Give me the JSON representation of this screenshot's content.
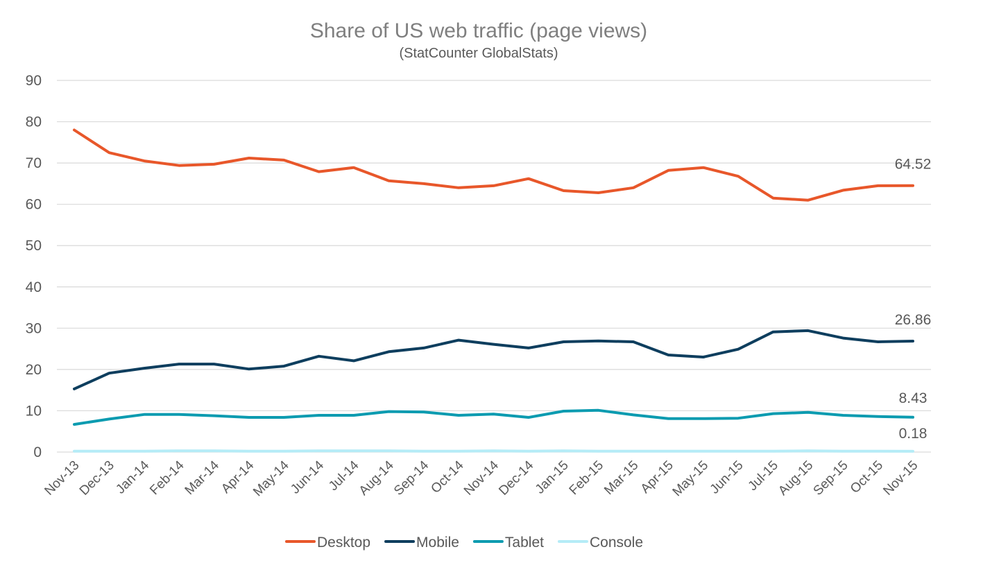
{
  "chart_data": {
    "type": "line",
    "title": "Share of US web traffic (page views)",
    "subtitle": "(StatCounter GlobalStats)",
    "xlabel": "",
    "ylabel": "",
    "ylim": [
      0,
      90
    ],
    "yticks": [
      "0",
      "10",
      "20",
      "30",
      "40",
      "50",
      "60",
      "70",
      "80",
      "90"
    ],
    "grid": true,
    "legend_position": "bottom",
    "categories": [
      "Nov-13",
      "Dec-13",
      "Jan-14",
      "Feb-14",
      "Mar-14",
      "Apr-14",
      "May-14",
      "Jun-14",
      "Jul-14",
      "Aug-14",
      "Sep-14",
      "Oct-14",
      "Nov-14",
      "Dec-14",
      "Jan-15",
      "Feb-15",
      "Mar-15",
      "Apr-15",
      "May-15",
      "Jun-15",
      "Jul-15",
      "Aug-15",
      "Sep-15",
      "Oct-15",
      "Nov-15"
    ],
    "series": [
      {
        "name": "Desktop",
        "color": "#e8572a",
        "values": [
          78.0,
          72.5,
          70.5,
          69.4,
          69.7,
          71.2,
          70.7,
          67.9,
          68.9,
          65.7,
          65.0,
          64.0,
          64.5,
          66.2,
          63.3,
          62.8,
          64.0,
          68.2,
          68.9,
          66.8,
          61.5,
          61.0,
          63.4,
          64.5,
          64.52
        ],
        "end_label": "64.52"
      },
      {
        "name": "Mobile",
        "color": "#0e3e5e",
        "values": [
          15.3,
          19.1,
          20.3,
          21.3,
          21.3,
          20.1,
          20.8,
          23.2,
          22.1,
          24.3,
          25.2,
          27.1,
          26.1,
          25.2,
          26.7,
          26.9,
          26.7,
          23.5,
          23.0,
          24.9,
          29.1,
          29.4,
          27.6,
          26.7,
          26.86
        ],
        "end_label": "26.86"
      },
      {
        "name": "Tablet",
        "color": "#0b9bb0",
        "values": [
          6.7,
          8.0,
          9.1,
          9.1,
          8.8,
          8.4,
          8.4,
          8.9,
          8.9,
          9.8,
          9.7,
          8.9,
          9.2,
          8.4,
          9.9,
          10.1,
          9.0,
          8.1,
          8.1,
          8.2,
          9.3,
          9.6,
          8.9,
          8.6,
          8.43
        ],
        "end_label": "8.43"
      },
      {
        "name": "Console",
        "color": "#b5ecf7",
        "values": [
          0.2,
          0.2,
          0.2,
          0.3,
          0.3,
          0.2,
          0.2,
          0.3,
          0.3,
          0.3,
          0.2,
          0.2,
          0.3,
          0.2,
          0.3,
          0.2,
          0.2,
          0.2,
          0.2,
          0.2,
          0.2,
          0.3,
          0.2,
          0.2,
          0.18
        ],
        "end_label": "0.18"
      }
    ]
  }
}
